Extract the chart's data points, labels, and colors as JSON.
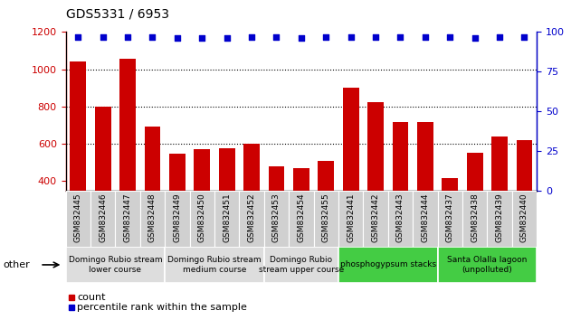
{
  "title": "GDS5331 / 6953",
  "samples": [
    "GSM832445",
    "GSM832446",
    "GSM832447",
    "GSM832448",
    "GSM832449",
    "GSM832450",
    "GSM832451",
    "GSM832452",
    "GSM832453",
    "GSM832454",
    "GSM832455",
    "GSM832441",
    "GSM832442",
    "GSM832443",
    "GSM832444",
    "GSM832437",
    "GSM832438",
    "GSM832439",
    "GSM832440"
  ],
  "counts": [
    1040,
    800,
    1055,
    695,
    545,
    570,
    575,
    600,
    480,
    470,
    510,
    900,
    825,
    715,
    715,
    415,
    550,
    640,
    620
  ],
  "percentiles": [
    97,
    97,
    97,
    97,
    96,
    96,
    96,
    97,
    97,
    96,
    97,
    97,
    97,
    97,
    97,
    97,
    96,
    97,
    97
  ],
  "ylim_left": [
    350,
    1200
  ],
  "ylim_right": [
    0,
    100
  ],
  "yticks_left": [
    400,
    600,
    800,
    1000,
    1200
  ],
  "yticks_right": [
    0,
    25,
    50,
    75,
    100
  ],
  "bar_color": "#cc0000",
  "dot_color": "#0000cc",
  "background_color": "#ffffff",
  "plot_bg_color": "#ffffff",
  "groups": [
    {
      "label": "Domingo Rubio stream\nlower course",
      "start": 0,
      "end": 3,
      "color": "#dddddd"
    },
    {
      "label": "Domingo Rubio stream\nmedium course",
      "start": 4,
      "end": 7,
      "color": "#dddddd"
    },
    {
      "label": "Domingo Rubio\nstream upper course",
      "start": 8,
      "end": 10,
      "color": "#dddddd"
    },
    {
      "label": "phosphogypsum stacks",
      "start": 11,
      "end": 14,
      "color": "#44cc44"
    },
    {
      "label": "Santa Olalla lagoon\n(unpolluted)",
      "start": 15,
      "end": 18,
      "color": "#44cc44"
    }
  ],
  "legend_count_label": "count",
  "legend_pct_label": "percentile rank within the sample",
  "other_label": "other",
  "gridline_values": [
    600,
    800,
    1000
  ],
  "gridline_color": "#000000",
  "tick_label_fontsize": 6.5,
  "group_label_fontsize": 6.5,
  "title_fontsize": 10
}
